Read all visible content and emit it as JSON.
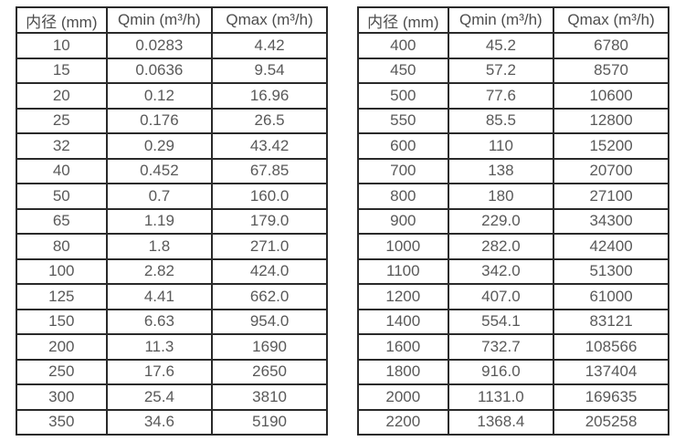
{
  "colors": {
    "background": "#ffffff",
    "border": "#2a2a2a",
    "text": "#595959",
    "header_text": "#4d4d4d"
  },
  "chart_data": [
    {
      "type": "table",
      "title": "",
      "columns": [
        "内径 (mm)",
        "Qmin (m³/h)",
        "Qmax (m³/h)"
      ],
      "rows": [
        [
          "10",
          "0.0283",
          "4.42"
        ],
        [
          "15",
          "0.0636",
          "9.54"
        ],
        [
          "20",
          "0.12",
          "16.96"
        ],
        [
          "25",
          "0.176",
          "26.5"
        ],
        [
          "32",
          "0.29",
          "43.42"
        ],
        [
          "40",
          "0.452",
          "67.85"
        ],
        [
          "50",
          "0.7",
          "160.0"
        ],
        [
          "65",
          "1.19",
          "179.0"
        ],
        [
          "80",
          "1.8",
          "271.0"
        ],
        [
          "100",
          "2.82",
          "424.0"
        ],
        [
          "125",
          "4.41",
          "662.0"
        ],
        [
          "150",
          "6.63",
          "954.0"
        ],
        [
          "200",
          "11.3",
          "1690"
        ],
        [
          "250",
          "17.6",
          "2650"
        ],
        [
          "300",
          "25.4",
          "3810"
        ],
        [
          "350",
          "34.6",
          "5190"
        ]
      ]
    },
    {
      "type": "table",
      "title": "",
      "columns": [
        "内径 (mm)",
        "Qmin (m³/h)",
        "Qmax (m³/h)"
      ],
      "rows": [
        [
          "400",
          "45.2",
          "6780"
        ],
        [
          "450",
          "57.2",
          "8570"
        ],
        [
          "500",
          "77.6",
          "10600"
        ],
        [
          "550",
          "85.5",
          "12800"
        ],
        [
          "600",
          "110",
          "15200"
        ],
        [
          "700",
          "138",
          "20700"
        ],
        [
          "800",
          "180",
          "27100"
        ],
        [
          "900",
          "229.0",
          "34300"
        ],
        [
          "1000",
          "282.0",
          "42400"
        ],
        [
          "1100",
          "342.0",
          "51300"
        ],
        [
          "1200",
          "407.0",
          "61000"
        ],
        [
          "1400",
          "554.1",
          "83121"
        ],
        [
          "1600",
          "732.7",
          "108566"
        ],
        [
          "1800",
          "916.0",
          "137404"
        ],
        [
          "2000",
          "1131.0",
          "169635"
        ],
        [
          "2200",
          "1368.4",
          "205258"
        ]
      ]
    }
  ]
}
